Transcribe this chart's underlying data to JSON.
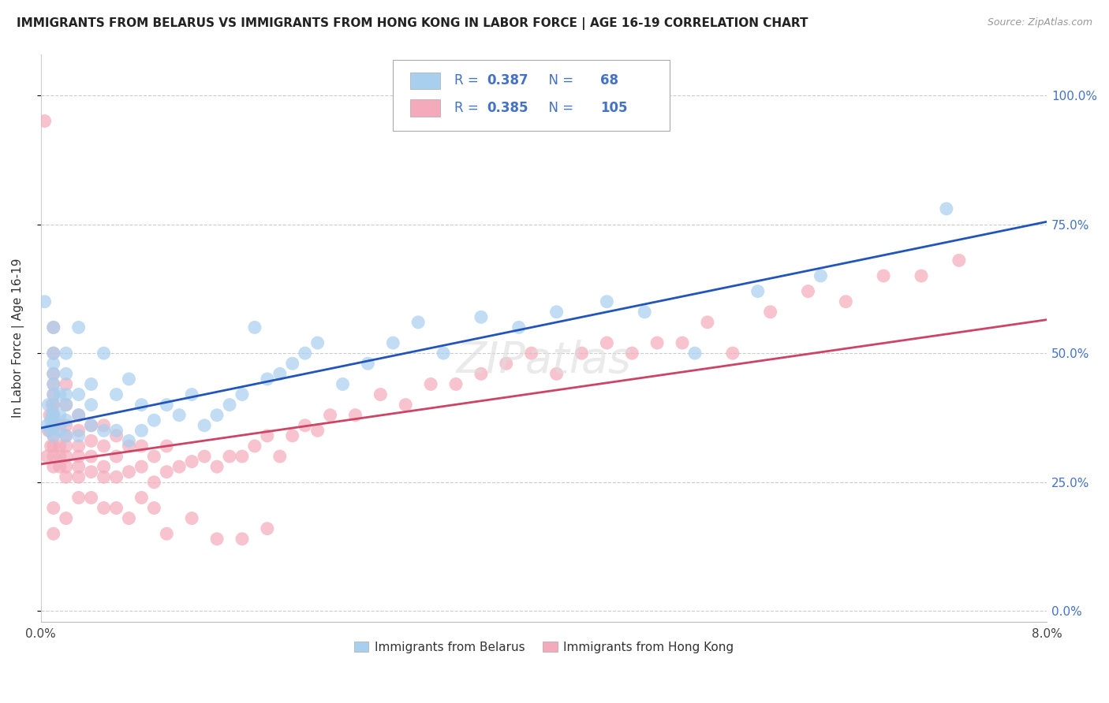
{
  "title": "IMMIGRANTS FROM BELARUS VS IMMIGRANTS FROM HONG KONG IN LABOR FORCE | AGE 16-19 CORRELATION CHART",
  "source": "Source: ZipAtlas.com",
  "ylabel": "In Labor Force | Age 16-19",
  "yticks_labels": [
    "0.0%",
    "25.0%",
    "50.0%",
    "75.0%",
    "100.0%"
  ],
  "ytick_vals": [
    0.0,
    0.25,
    0.5,
    0.75,
    1.0
  ],
  "xlim": [
    0.0,
    0.08
  ],
  "ylim": [
    -0.02,
    1.08
  ],
  "legend_belarus": "Immigrants from Belarus",
  "legend_hongkong": "Immigrants from Hong Kong",
  "R_belarus": 0.387,
  "N_belarus": 68,
  "R_hongkong": 0.385,
  "N_hongkong": 105,
  "color_belarus": "#A8CFEE",
  "color_hongkong": "#F4AABB",
  "line_color_belarus": "#2255BB",
  "line_color_hongkong": "#CC4466",
  "watermark": "ZIPatlas",
  "bel_line_y0": 0.355,
  "bel_line_y1": 0.755,
  "hk_line_y0": 0.285,
  "hk_line_y1": 0.565,
  "belarus_x": [
    0.0003,
    0.0005,
    0.0006,
    0.0007,
    0.0008,
    0.0009,
    0.001,
    0.001,
    0.001,
    0.001,
    0.001,
    0.001,
    0.001,
    0.001,
    0.001,
    0.001,
    0.0015,
    0.0015,
    0.0015,
    0.002,
    0.002,
    0.002,
    0.002,
    0.002,
    0.002,
    0.003,
    0.003,
    0.003,
    0.003,
    0.004,
    0.004,
    0.004,
    0.005,
    0.005,
    0.006,
    0.006,
    0.007,
    0.007,
    0.008,
    0.008,
    0.009,
    0.01,
    0.011,
    0.012,
    0.013,
    0.014,
    0.015,
    0.016,
    0.017,
    0.018,
    0.019,
    0.02,
    0.021,
    0.022,
    0.024,
    0.026,
    0.028,
    0.03,
    0.032,
    0.035,
    0.038,
    0.041,
    0.045,
    0.048,
    0.052,
    0.057,
    0.062,
    0.072
  ],
  "belarus_y": [
    0.6,
    0.36,
    0.4,
    0.35,
    0.37,
    0.38,
    0.34,
    0.36,
    0.38,
    0.4,
    0.42,
    0.44,
    0.46,
    0.48,
    0.5,
    0.55,
    0.35,
    0.38,
    0.42,
    0.34,
    0.37,
    0.4,
    0.42,
    0.46,
    0.5,
    0.34,
    0.38,
    0.42,
    0.55,
    0.36,
    0.4,
    0.44,
    0.35,
    0.5,
    0.35,
    0.42,
    0.33,
    0.45,
    0.35,
    0.4,
    0.37,
    0.4,
    0.38,
    0.42,
    0.36,
    0.38,
    0.4,
    0.42,
    0.55,
    0.45,
    0.46,
    0.48,
    0.5,
    0.52,
    0.44,
    0.48,
    0.52,
    0.56,
    0.5,
    0.57,
    0.55,
    0.58,
    0.6,
    0.58,
    0.5,
    0.62,
    0.65,
    0.78
  ],
  "hongkong_x": [
    0.0003,
    0.0005,
    0.0006,
    0.0007,
    0.0008,
    0.0009,
    0.001,
    0.001,
    0.001,
    0.001,
    0.001,
    0.001,
    0.001,
    0.001,
    0.001,
    0.001,
    0.001,
    0.001,
    0.0015,
    0.0015,
    0.0015,
    0.0015,
    0.002,
    0.002,
    0.002,
    0.002,
    0.002,
    0.002,
    0.002,
    0.002,
    0.003,
    0.003,
    0.003,
    0.003,
    0.003,
    0.003,
    0.004,
    0.004,
    0.004,
    0.004,
    0.005,
    0.005,
    0.005,
    0.005,
    0.006,
    0.006,
    0.006,
    0.007,
    0.007,
    0.008,
    0.008,
    0.009,
    0.009,
    0.01,
    0.01,
    0.011,
    0.012,
    0.013,
    0.014,
    0.015,
    0.016,
    0.017,
    0.018,
    0.019,
    0.02,
    0.021,
    0.022,
    0.023,
    0.025,
    0.027,
    0.029,
    0.031,
    0.033,
    0.035,
    0.037,
    0.039,
    0.041,
    0.043,
    0.045,
    0.047,
    0.049,
    0.051,
    0.053,
    0.055,
    0.058,
    0.061,
    0.064,
    0.067,
    0.07,
    0.073,
    0.001,
    0.001,
    0.002,
    0.003,
    0.004,
    0.005,
    0.006,
    0.007,
    0.008,
    0.009,
    0.01,
    0.012,
    0.014,
    0.016,
    0.018
  ],
  "hongkong_y": [
    0.95,
    0.3,
    0.35,
    0.38,
    0.32,
    0.4,
    0.28,
    0.3,
    0.32,
    0.34,
    0.36,
    0.38,
    0.4,
    0.42,
    0.44,
    0.46,
    0.5,
    0.55,
    0.28,
    0.3,
    0.32,
    0.36,
    0.26,
    0.28,
    0.3,
    0.32,
    0.34,
    0.36,
    0.4,
    0.44,
    0.26,
    0.28,
    0.3,
    0.32,
    0.35,
    0.38,
    0.27,
    0.3,
    0.33,
    0.36,
    0.26,
    0.28,
    0.32,
    0.36,
    0.26,
    0.3,
    0.34,
    0.27,
    0.32,
    0.28,
    0.32,
    0.25,
    0.3,
    0.27,
    0.32,
    0.28,
    0.29,
    0.3,
    0.28,
    0.3,
    0.3,
    0.32,
    0.34,
    0.3,
    0.34,
    0.36,
    0.35,
    0.38,
    0.38,
    0.42,
    0.4,
    0.44,
    0.44,
    0.46,
    0.48,
    0.5,
    0.46,
    0.5,
    0.52,
    0.5,
    0.52,
    0.52,
    0.56,
    0.5,
    0.58,
    0.62,
    0.6,
    0.65,
    0.65,
    0.68,
    0.2,
    0.15,
    0.18,
    0.22,
    0.22,
    0.2,
    0.2,
    0.18,
    0.22,
    0.2,
    0.15,
    0.18,
    0.14,
    0.14,
    0.16
  ]
}
